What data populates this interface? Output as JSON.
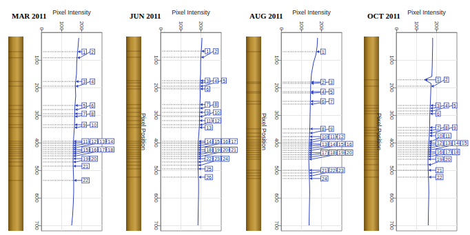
{
  "chart_data": [
    {
      "type": "line",
      "title": "MAR 2011",
      "xlabel": "Pixel Intensity",
      "x": [
        185,
        182,
        178,
        175,
        174,
        168,
        170,
        166,
        165,
        164,
        160,
        158,
        158,
        157,
        158,
        160,
        160,
        158,
        155,
        150
      ],
      "y": [
        20,
        50,
        80,
        110,
        150,
        190,
        230,
        270,
        300,
        340,
        380,
        410,
        440,
        470,
        500,
        540,
        580,
        620,
        660,
        700
      ],
      "xlim": [
        0,
        300
      ],
      "xticks": [
        0,
        100,
        200
      ],
      "ylim": [
        0,
        720
      ],
      "yticks": [
        100,
        200,
        300,
        400,
        500,
        600,
        700
      ],
      "grid": true,
      "color": "#2a3fbf",
      "bands": [
        70,
        92,
        178,
        195,
        265,
        280,
        295,
        305,
        335,
        345,
        395,
        402,
        410,
        418,
        425,
        433,
        440,
        448,
        458,
        470,
        485,
        537
      ],
      "band_labels": [
        1,
        2,
        3,
        4,
        5,
        6,
        7,
        8,
        9,
        10,
        11,
        12,
        13,
        14,
        15,
        16,
        17,
        18,
        19,
        20,
        21,
        22
      ]
    },
    {
      "type": "line",
      "title": "JUN 2011",
      "xlabel": "Pixel Intensity",
      "ylabel": "Pixel Position",
      "x": [
        205,
        203,
        200,
        198,
        198,
        195,
        196,
        194,
        193,
        192,
        188,
        186,
        185,
        185,
        186,
        188,
        188,
        187,
        186,
        185
      ],
      "y": [
        20,
        50,
        80,
        110,
        150,
        190,
        230,
        270,
        300,
        340,
        380,
        410,
        440,
        470,
        500,
        540,
        580,
        620,
        660,
        700
      ],
      "xlim": [
        0,
        300
      ],
      "xticks": [
        0,
        100,
        200
      ],
      "ylim": [
        0,
        720
      ],
      "yticks": [
        100,
        200,
        300,
        400,
        500,
        600,
        700
      ],
      "grid": true,
      "color": "#2a3fbf",
      "bands": [
        68,
        90,
        175,
        183,
        195,
        205,
        262,
        275,
        290,
        305,
        320,
        335,
        345,
        395,
        402,
        410,
        418,
        426,
        435,
        442,
        450,
        458,
        470,
        482,
        495,
        525
      ],
      "band_labels": [
        1,
        2,
        3,
        4,
        5,
        6,
        7,
        8,
        9,
        10,
        11,
        12,
        13,
        14,
        15,
        16,
        17,
        18,
        19,
        20,
        21,
        22,
        23,
        24,
        25,
        26
      ]
    },
    {
      "type": "line",
      "title": "AUG 2011",
      "xlabel": "Pixel Intensity",
      "ylabel": "Pixel Position",
      "x": [
        180,
        178,
        172,
        160,
        150,
        146,
        145,
        144,
        143,
        142,
        140,
        138,
        137,
        137,
        138,
        140,
        141,
        140,
        139,
        138
      ],
      "y": [
        20,
        50,
        80,
        110,
        150,
        190,
        230,
        270,
        300,
        340,
        380,
        410,
        440,
        470,
        500,
        540,
        580,
        620,
        660,
        700
      ],
      "xlim": [
        0,
        300
      ],
      "xticks": [
        0,
        100,
        200
      ],
      "ylim": [
        0,
        720
      ],
      "yticks": [
        100,
        200,
        300,
        400,
        500,
        600,
        700
      ],
      "grid": true,
      "color": "#2a3fbf",
      "bands": [
        70,
        180,
        185,
        215,
        220,
        250,
        260,
        350,
        365,
        378,
        390,
        398,
        405,
        412,
        420,
        428,
        436,
        444,
        452,
        460,
        500,
        510,
        520,
        530
      ],
      "band_labels": [
        1,
        2,
        3,
        4,
        5,
        6,
        7,
        8,
        9,
        10,
        11,
        12,
        13,
        14,
        15,
        16,
        17,
        18,
        19,
        20,
        21,
        22,
        23,
        24
      ]
    },
    {
      "type": "line",
      "title": "OCT 2011",
      "xlabel": "Pixel Intensity",
      "ylabel": "Pixel Position",
      "x": [
        180,
        180,
        179,
        178,
        176,
        140,
        172,
        170,
        168,
        166,
        165,
        163,
        160,
        158,
        157,
        158,
        160,
        161,
        160,
        159,
        158
      ],
      "y": [
        20,
        50,
        80,
        120,
        160,
        172,
        185,
        230,
        270,
        300,
        340,
        380,
        410,
        440,
        470,
        500,
        540,
        580,
        620,
        660,
        700
      ],
      "xlim": [
        0,
        300
      ],
      "xticks": [
        0,
        100,
        200
      ],
      "ylim": [
        0,
        720
      ],
      "yticks": [
        100,
        200,
        300,
        400,
        500,
        600,
        700
      ],
      "grid": true,
      "color": "#2a3fbf",
      "bands": [
        172,
        195,
        265,
        275,
        285,
        295,
        345,
        355,
        365,
        375,
        395,
        402,
        410,
        418,
        426,
        434,
        442,
        450,
        460,
        480,
        500,
        525
      ],
      "band_labels": [
        1,
        2,
        3,
        4,
        5,
        6,
        7,
        8,
        9,
        10,
        11,
        12,
        13,
        14,
        15,
        16,
        17,
        18,
        19,
        20,
        21,
        22
      ]
    }
  ]
}
